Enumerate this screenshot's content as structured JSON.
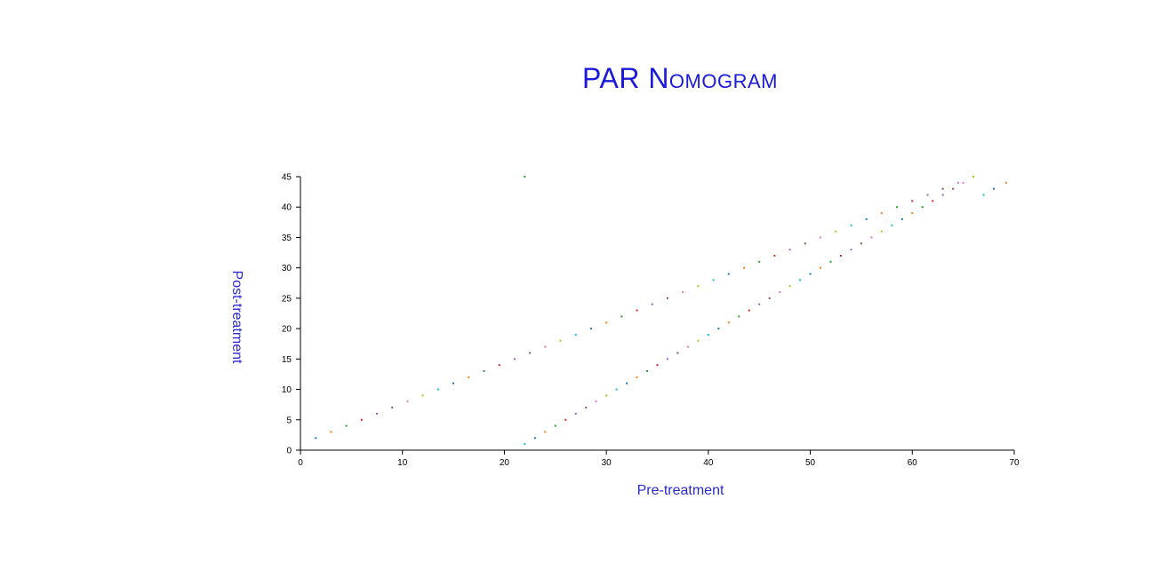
{
  "title": "PAR Nomogram",
  "chart_data": {
    "type": "scatter",
    "title": "PAR Nomogram",
    "xlabel": "Pre-treatment",
    "ylabel": "Post-treatment",
    "xlim": [
      0,
      70
    ],
    "ylim": [
      0,
      45
    ],
    "xticks": [
      0,
      10,
      20,
      30,
      40,
      50,
      60,
      70
    ],
    "yticks": [
      0,
      5,
      10,
      15,
      20,
      25,
      30,
      35,
      40,
      45
    ],
    "grid": false,
    "colors": [
      "#1f77b4",
      "#ff7f0e",
      "#2ca02c",
      "#d62728",
      "#9467bd",
      "#8c564b",
      "#e377c2",
      "#bcbd22",
      "#17becf"
    ],
    "series": [
      {
        "x": [
          1.5,
          3.0,
          4.5,
          6.0,
          7.5,
          9.0,
          10.5,
          12.0,
          13.5,
          15.0,
          16.5,
          18.0,
          19.5,
          21.0,
          22.5,
          24.0,
          25.5,
          27.0,
          28.5,
          30.0,
          31.5,
          33.0,
          34.5,
          36.0,
          37.5,
          39.0,
          40.5,
          42.0,
          43.5,
          45.0,
          46.5,
          48.0,
          49.5,
          51.0,
          52.5,
          54.0,
          55.5,
          57.0,
          58.5,
          60.0,
          61.5,
          63.0,
          64.5,
          66.0
        ],
        "y": [
          2,
          3,
          4,
          5,
          6,
          7,
          8,
          9,
          10,
          11,
          12,
          13,
          14,
          15,
          16,
          17,
          18,
          19,
          20,
          21,
          22,
          23,
          24,
          25,
          26,
          27,
          28,
          29,
          30,
          31,
          32,
          33,
          34,
          35,
          36,
          37,
          38,
          39,
          40,
          41,
          42,
          43,
          44,
          45
        ]
      },
      {
        "x": [
          22.0,
          23.0,
          24.0,
          25.0,
          26.0,
          27.0,
          28.0,
          29.0,
          30.0,
          31.0,
          32.0,
          33.0,
          34.0,
          35.0,
          36.0,
          37.0,
          38.0,
          39.0,
          40.0,
          41.0,
          42.0,
          43.0,
          44.0,
          45.0,
          46.0,
          47.0,
          48.0,
          49.0,
          50.0,
          51.0,
          52.0,
          53.0,
          54.0,
          55.0,
          56.0,
          57.0,
          58.0,
          59.0,
          60.0,
          61.0,
          62.0,
          63.0,
          64.0,
          65.0,
          66.0,
          67.0,
          68.0,
          69.2
        ],
        "y": [
          1,
          2,
          3,
          4,
          5,
          6,
          7,
          8,
          9,
          10,
          11,
          12,
          13,
          14,
          15,
          16,
          17,
          18,
          19,
          20,
          21,
          22,
          23,
          24,
          25,
          26,
          27,
          28,
          29,
          30,
          31,
          32,
          33,
          34,
          35,
          36,
          37,
          38,
          39,
          40,
          41,
          42,
          43,
          44,
          45,
          42,
          43,
          44
        ]
      },
      {
        "x": [
          22.0
        ],
        "y": [
          45
        ]
      }
    ]
  }
}
